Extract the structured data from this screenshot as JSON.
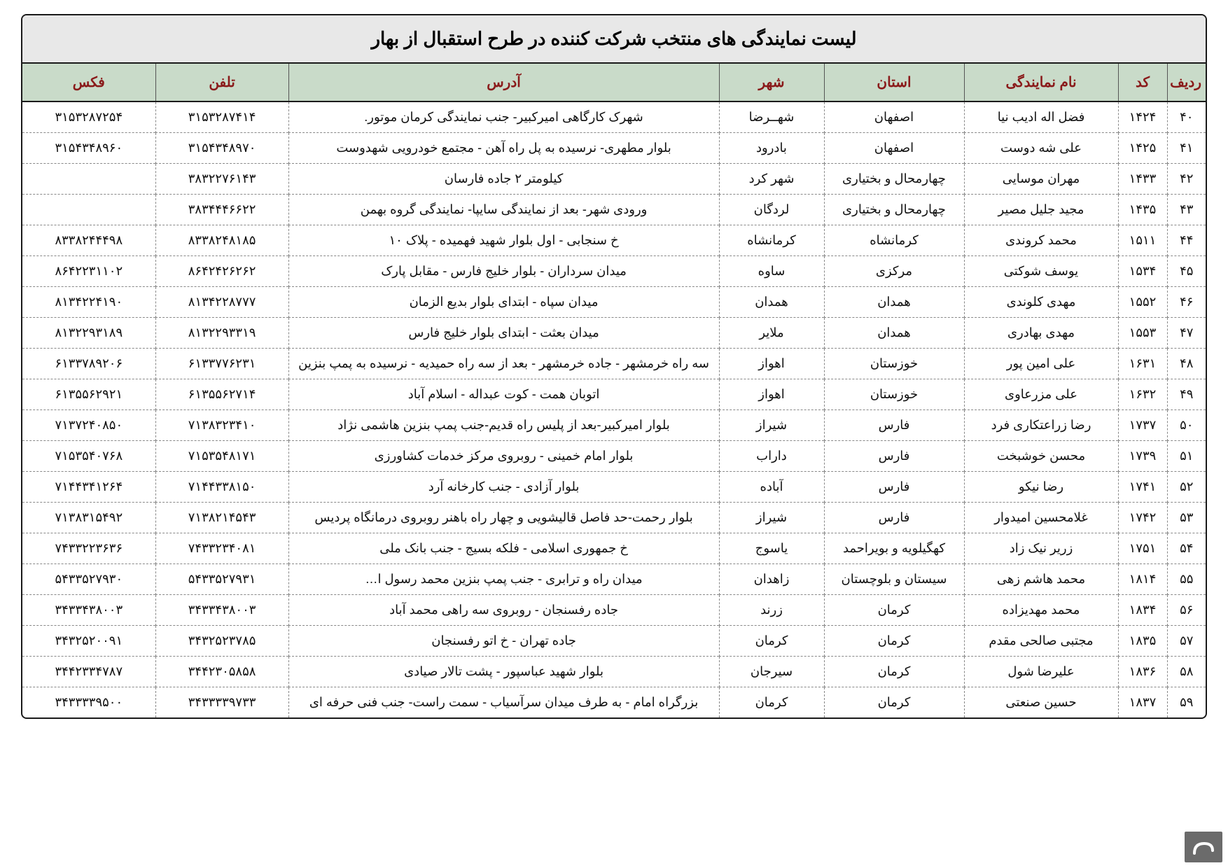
{
  "title": "لیست نمایندگی های منتخب شرکت کننده در طرح استقبال از بهار",
  "headers": {
    "row": "ردیف",
    "code": "کد",
    "name": "نام نمایندگی",
    "province": "استان",
    "city": "شهر",
    "address": "آدرس",
    "tel": "تلفن",
    "fax": "فکس"
  },
  "rows": [
    {
      "row": "۴۰",
      "code": "۱۴۲۴",
      "name": "فضل اله ادیب نیا",
      "province": "اصفهان",
      "city": "شهــرضا",
      "address": "شهرک کارگاهی امیرکبیر- جنب نمایندگی کرمان موتور.",
      "tel": "۳۱۵۳۲۸۷۴۱۴",
      "fax": "۳۱۵۳۲۸۷۲۵۴"
    },
    {
      "row": "۴۱",
      "code": "۱۴۲۵",
      "name": "علی شه دوست",
      "province": "اصفهان",
      "city": "بادرود",
      "address": "بلوار مطهری- نرسیده به پل راه آهن - مجتمع خودرویی شهدوست",
      "tel": "۳۱۵۴۳۴۸۹۷۰",
      "fax": "۳۱۵۴۳۴۸۹۶۰"
    },
    {
      "row": "۴۲",
      "code": "۱۴۳۳",
      "name": "مهران موسایی",
      "province": "چهارمحال و بختیاری",
      "city": "شهر کرد",
      "address": "کیلومتر ۲ جاده فارسان",
      "tel": "۳۸۳۲۲۷۶۱۴۳",
      "fax": ""
    },
    {
      "row": "۴۳",
      "code": "۱۴۳۵",
      "name": "مجید جلیل مصیر",
      "province": "چهارمحال و بختیاری",
      "city": "لردگان",
      "address": "ورودی شهر- بعد از نمایندگی سایپا- نمایندگی گروه بهمن",
      "tel": "۳۸۳۴۴۴۶۶۲۲",
      "fax": ""
    },
    {
      "row": "۴۴",
      "code": "۱۵۱۱",
      "name": "محمد کروندی",
      "province": "کرمانشاه",
      "city": "کرمانشاه",
      "address": "خ سنجابی - اول بلوار شهید فهمیده - پلاک ۱۰",
      "tel": "۸۳۳۸۲۴۸۱۸۵",
      "fax": "۸۳۳۸۲۴۴۴۹۸"
    },
    {
      "row": "۴۵",
      "code": "۱۵۳۴",
      "name": "یوسف شوکتی",
      "province": "مرکزی",
      "city": "ساوه",
      "address": "میدان سرداران - بلوار خلیج فارس - مقابل پارک",
      "tel": "۸۶۴۲۴۲۶۲۶۲",
      "fax": "۸۶۴۲۲۳۱۱۰۲"
    },
    {
      "row": "۴۶",
      "code": "۱۵۵۲",
      "name": "مهدی کلوندی",
      "province": "همدان",
      "city": "همدان",
      "address": "میدان سپاه - ابتدای بلوار بدیع الزمان",
      "tel": "۸۱۳۴۲۲۸۷۷۷",
      "fax": "۸۱۳۴۲۲۴۱۹۰"
    },
    {
      "row": "۴۷",
      "code": "۱۵۵۳",
      "name": "مهدی بهادری",
      "province": "همدان",
      "city": "ملایر",
      "address": "میدان بعثت - ابتدای بلوار خلیج فارس",
      "tel": "۸۱۳۲۲۹۳۳۱۹",
      "fax": "۸۱۳۲۲۹۳۱۸۹"
    },
    {
      "row": "۴۸",
      "code": "۱۶۳۱",
      "name": "علی امین پور",
      "province": "خوزستان",
      "city": "اهواز",
      "address": "سه راه خرمشهر - جاده خرمشهر - بعد از سه راه حمیدیه - نرسیده به پمپ بنزین",
      "tel": "۶۱۳۳۷۷۶۲۳۱",
      "fax": "۶۱۳۳۷۸۹۲۰۶"
    },
    {
      "row": "۴۹",
      "code": "۱۶۳۲",
      "name": "علی مزرعاوی",
      "province": "خوزستان",
      "city": "اهواز",
      "address": "اتوبان همت - کوت عبداله - اسلام آباد",
      "tel": "۶۱۳۵۵۶۲۷۱۴",
      "fax": "۶۱۳۵۵۶۲۹۲۱"
    },
    {
      "row": "۵۰",
      "code": "۱۷۳۷",
      "name": "رضا زراعتکاری فرد",
      "province": "فارس",
      "city": "شیراز",
      "address": "بلوار امیرکبیر-بعد از پلیس راه قدیم-جنب پمپ بنزین هاشمی نژاد",
      "tel": "۷۱۳۸۳۲۳۴۱۰",
      "fax": "۷۱۳۷۲۴۰۸۵۰"
    },
    {
      "row": "۵۱",
      "code": "۱۷۳۹",
      "name": "محسن خوشبخت",
      "province": "فارس",
      "city": "داراب",
      "address": "بلوار امام خمینی - روبروی مرکز خدمات کشاورزی",
      "tel": "۷۱۵۳۵۴۸۱۷۱",
      "fax": "۷۱۵۳۵۴۰۷۶۸"
    },
    {
      "row": "۵۲",
      "code": "۱۷۴۱",
      "name": "رضا نیکو",
      "province": "فارس",
      "city": "آباده",
      "address": "بلوار آزادی - جنب کارخانه آرد",
      "tel": "۷۱۴۴۳۳۸۱۵۰",
      "fax": "۷۱۴۴۳۴۱۲۶۴"
    },
    {
      "row": "۵۳",
      "code": "۱۷۴۲",
      "name": "غلامحسین امیدوار",
      "province": "فارس",
      "city": "شیراز",
      "address": "بلوار رحمت-حد فاصل قالیشویی و چهار راه باهنر روبروی درمانگاه پردیس",
      "tel": "۷۱۳۸۲۱۴۵۴۳",
      "fax": "۷۱۳۸۳۱۵۴۹۲"
    },
    {
      "row": "۵۴",
      "code": "۱۷۵۱",
      "name": "زریر نیک زاد",
      "province": "کهگیلویه و بویراحمد",
      "city": "یاسوج",
      "address": "خ جمهوری اسلامی - فلکه بسیج - جنب بانک ملی",
      "tel": "۷۴۳۳۲۳۴۰۸۱",
      "fax": "۷۴۳۳۲۲۳۶۳۶"
    },
    {
      "row": "۵۵",
      "code": "۱۸۱۴",
      "name": "محمد هاشم زهی",
      "province": "سیستان و بلوچستان",
      "city": "زاهدان",
      "address": "میدان راه و ترابری - جنب پمپ بنزین محمد رسول ا…",
      "tel": "۵۴۳۳۵۲۷۹۳۱",
      "fax": "۵۴۳۳۵۲۷۹۳۰"
    },
    {
      "row": "۵۶",
      "code": "۱۸۳۴",
      "name": "محمد مهدیزاده",
      "province": "کرمان",
      "city": "زرند",
      "address": "جاده رفسنجان - روبروی سه راهی محمد آباد",
      "tel": "۳۴۳۳۴۳۸۰۰۳",
      "fax": "۳۴۳۳۴۳۸۰۰۳"
    },
    {
      "row": "۵۷",
      "code": "۱۸۳۵",
      "name": "مجتبی صالحی مقدم",
      "province": "کرمان",
      "city": "کرمان",
      "address": "جاده تهران - خ اتو رفسنجان",
      "tel": "۳۴۳۲۵۲۳۷۸۵",
      "fax": "۳۴۳۲۵۲۰۰۹۱"
    },
    {
      "row": "۵۸",
      "code": "۱۸۳۶",
      "name": "علیرضا شول",
      "province": "کرمان",
      "city": "سیرجان",
      "address": "بلوار شهید عباسپور - پشت تالار صیادی",
      "tel": "۳۴۴۲۳۰۵۸۵۸",
      "fax": "۳۴۴۲۳۳۴۷۸۷"
    },
    {
      "row": "۵۹",
      "code": "۱۸۳۷",
      "name": "حسین صنعتی",
      "province": "کرمان",
      "city": "کرمان",
      "address": "بزرگراه امام - به طرف میدان سرآسیاب - سمت راست- جنب فنی حرفه ای",
      "tel": "۳۴۳۳۳۳۹۷۳۳",
      "fax": "۳۴۳۳۳۳۹۵۰۰"
    }
  ]
}
